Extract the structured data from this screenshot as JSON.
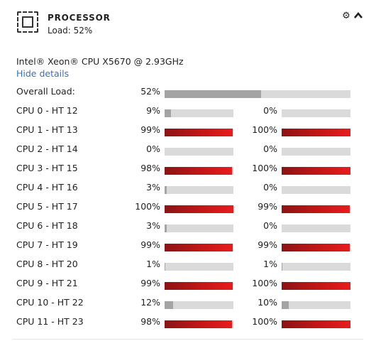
{
  "header": {
    "title": "PROCESSOR",
    "load_text": "Load: 52%",
    "settings_icon": "gear-icon",
    "collapse_icon": "chevron-up-icon"
  },
  "processor": {
    "model": "Intel® Xeon® CPU X5670 @ 2.93GHz",
    "hide_details_label": "Hide details"
  },
  "overall": {
    "label": "Overall Load:",
    "percent_text": "52%",
    "value": 52
  },
  "cpus": [
    {
      "label": "CPU 0 - HT 12",
      "a_text": "9%",
      "a": 9,
      "b_text": "0%",
      "b": 0
    },
    {
      "label": "CPU 1 - HT 13",
      "a_text": "99%",
      "a": 99,
      "b_text": "100%",
      "b": 100
    },
    {
      "label": "CPU 2 - HT 14",
      "a_text": "0%",
      "a": 0,
      "b_text": "0%",
      "b": 0
    },
    {
      "label": "CPU 3 - HT 15",
      "a_text": "98%",
      "a": 98,
      "b_text": "100%",
      "b": 100
    },
    {
      "label": "CPU 4 - HT 16",
      "a_text": "3%",
      "a": 3,
      "b_text": "0%",
      "b": 0
    },
    {
      "label": "CPU 5 - HT 17",
      "a_text": "100%",
      "a": 100,
      "b_text": "99%",
      "b": 99
    },
    {
      "label": "CPU 6 - HT 18",
      "a_text": "3%",
      "a": 3,
      "b_text": "0%",
      "b": 0
    },
    {
      "label": "CPU 7 - HT 19",
      "a_text": "99%",
      "a": 99,
      "b_text": "99%",
      "b": 99
    },
    {
      "label": "CPU 8 - HT 20",
      "a_text": "1%",
      "a": 1,
      "b_text": "1%",
      "b": 1
    },
    {
      "label": "CPU 9 - HT 21",
      "a_text": "99%",
      "a": 99,
      "b_text": "100%",
      "b": 100
    },
    {
      "label": "CPU 10 - HT 22",
      "a_text": "12%",
      "a": 12,
      "b_text": "10%",
      "b": 10
    },
    {
      "label": "CPU 11 - HT 23",
      "a_text": "98%",
      "a": 98,
      "b_text": "100%",
      "b": 100
    }
  ],
  "colors": {
    "bar_track": "#dadada",
    "bar_low": "#a4a4a4",
    "bar_high_dark": "#8c1414",
    "bar_high_light": "#e81c1c",
    "link": "#3b6fb6"
  }
}
